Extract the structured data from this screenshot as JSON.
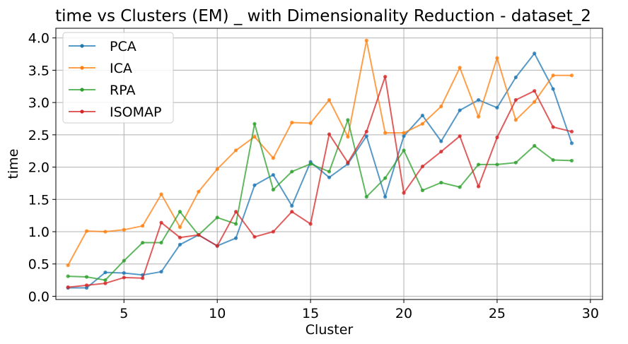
{
  "chart_data": {
    "type": "line",
    "title": "time vs Clusters (EM) _ with Dimensionality Reduction - dataset_2",
    "xlabel": "Cluster",
    "ylabel": "time",
    "xlim": [
      1.35,
      30.65
    ],
    "ylim": [
      -0.05,
      4.15
    ],
    "x_ticks": [
      5,
      10,
      15,
      20,
      25,
      30
    ],
    "y_ticks": [
      0.0,
      0.5,
      1.0,
      1.5,
      2.0,
      2.5,
      3.0,
      3.5,
      4.0
    ],
    "x_tick_labels": [
      "5",
      "10",
      "15",
      "20",
      "25",
      "30"
    ],
    "y_tick_labels": [
      "0.0",
      "0.5",
      "1.0",
      "1.5",
      "2.0",
      "2.5",
      "3.0",
      "3.5",
      "4.0"
    ],
    "grid": true,
    "legend_position": "upper-left",
    "x": [
      2,
      3,
      4,
      5,
      6,
      7,
      8,
      9,
      10,
      11,
      12,
      13,
      14,
      15,
      16,
      17,
      18,
      19,
      20,
      21,
      22,
      23,
      24,
      25,
      26,
      27,
      28,
      29
    ],
    "series": [
      {
        "name": "PCA",
        "color": "#1f77b4",
        "values": [
          0.13,
          0.13,
          0.37,
          0.36,
          0.33,
          0.38,
          0.8,
          0.95,
          0.78,
          0.9,
          1.72,
          1.88,
          1.4,
          2.08,
          1.84,
          2.05,
          2.48,
          1.54,
          2.48,
          2.8,
          2.4,
          2.88,
          3.04,
          2.92,
          3.39,
          3.76,
          3.21,
          2.37
        ]
      },
      {
        "name": "ICA",
        "color": "#ff7f0e",
        "values": [
          0.48,
          1.01,
          1.0,
          1.03,
          1.09,
          1.58,
          1.07,
          1.62,
          1.97,
          2.26,
          2.47,
          2.14,
          2.69,
          2.68,
          3.04,
          2.47,
          3.96,
          2.53,
          2.53,
          2.67,
          2.94,
          3.54,
          2.78,
          3.69,
          2.73,
          3.01,
          3.42,
          3.42
        ]
      },
      {
        "name": "RPA",
        "color": "#2ca02c",
        "values": [
          0.31,
          0.3,
          0.25,
          0.55,
          0.83,
          0.83,
          1.31,
          0.95,
          1.22,
          1.12,
          2.67,
          1.65,
          1.93,
          2.05,
          1.93,
          2.73,
          1.54,
          1.83,
          2.26,
          1.64,
          1.76,
          1.69,
          2.04,
          2.04,
          2.07,
          2.33,
          2.11,
          2.1
        ]
      },
      {
        "name": "ISOMAP",
        "color": "#d62728",
        "values": [
          0.14,
          0.17,
          0.2,
          0.29,
          0.28,
          1.14,
          0.91,
          0.95,
          0.78,
          1.31,
          0.92,
          1.0,
          1.31,
          1.12,
          2.51,
          2.07,
          2.55,
          3.4,
          1.6,
          2.01,
          2.24,
          2.48,
          1.7,
          2.46,
          3.04,
          3.18,
          2.62,
          2.55
        ]
      }
    ]
  }
}
